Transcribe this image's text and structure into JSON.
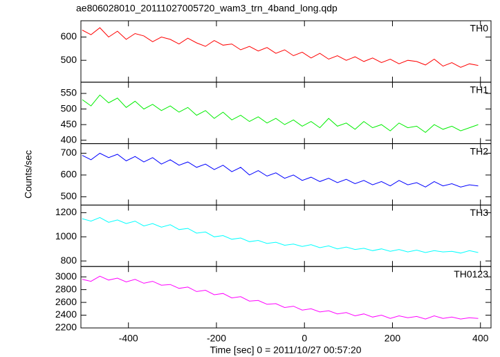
{
  "title": "ae806028010_20111027005720_wam3_trn_4band_long.qdp",
  "xlabel": "Time [sec] 0 = 2011/10/27 00:57:20",
  "ylabel": "Counts/sec",
  "chart_data": [
    {
      "type": "line",
      "x": [
        -505,
        -485,
        -465,
        -445,
        -425,
        -405,
        -385,
        -365,
        -345,
        -325,
        -305,
        -285,
        -265,
        -245,
        -225,
        -205,
        -185,
        -165,
        -145,
        -125,
        -105,
        -85,
        -65,
        -45,
        -25,
        -5,
        15,
        35,
        55,
        75,
        95,
        115,
        135,
        155,
        175,
        195,
        215,
        235,
        255,
        275,
        295,
        315,
        335,
        355,
        375,
        395
      ],
      "xlim": [
        -508,
        424
      ],
      "xticks": [
        -400,
        -200,
        0,
        200,
        400
      ],
      "ylim": [
        406,
        670
      ],
      "yticks": [
        500,
        600
      ],
      "series": [
        {
          "name": "TH0",
          "color": "#ff0000",
          "values": [
            630,
            610,
            640,
            600,
            625,
            590,
            615,
            605,
            580,
            600,
            590,
            570,
            595,
            575,
            560,
            585,
            565,
            570,
            545,
            560,
            540,
            555,
            530,
            545,
            520,
            535,
            510,
            530,
            505,
            520,
            500,
            515,
            495,
            510,
            490,
            505,
            485,
            500,
            495,
            480,
            505,
            475,
            490,
            470,
            485,
            478
          ]
        }
      ]
    },
    {
      "type": "line",
      "x": [
        -505,
        -485,
        -465,
        -445,
        -425,
        -405,
        -385,
        -365,
        -345,
        -325,
        -305,
        -285,
        -265,
        -245,
        -225,
        -205,
        -185,
        -165,
        -145,
        -125,
        -105,
        -85,
        -65,
        -45,
        -25,
        -5,
        15,
        35,
        55,
        75,
        95,
        115,
        135,
        155,
        175,
        195,
        215,
        235,
        255,
        275,
        295,
        315,
        335,
        355,
        375,
        395
      ],
      "xlim": [
        -508,
        424
      ],
      "xticks": [
        -400,
        -200,
        0,
        200,
        400
      ],
      "ylim": [
        389,
        586
      ],
      "yticks": [
        400,
        450,
        500,
        550
      ],
      "series": [
        {
          "name": "TH1",
          "color": "#00ee00",
          "values": [
            530,
            510,
            545,
            520,
            535,
            505,
            525,
            500,
            515,
            495,
            510,
            490,
            505,
            480,
            495,
            470,
            490,
            465,
            480,
            460,
            475,
            455,
            470,
            450,
            465,
            445,
            460,
            440,
            470,
            445,
            455,
            435,
            460,
            440,
            450,
            430,
            455,
            440,
            445,
            425,
            450,
            435,
            445,
            430,
            440,
            450
          ]
        }
      ]
    },
    {
      "type": "line",
      "x": [
        -505,
        -485,
        -465,
        -445,
        -425,
        -405,
        -385,
        -365,
        -345,
        -325,
        -305,
        -285,
        -265,
        -245,
        -225,
        -205,
        -185,
        -165,
        -145,
        -125,
        -105,
        -85,
        -65,
        -45,
        -25,
        -5,
        15,
        35,
        55,
        75,
        95,
        115,
        135,
        155,
        175,
        195,
        215,
        235,
        255,
        275,
        295,
        315,
        335,
        355,
        375,
        395
      ],
      "xlim": [
        -508,
        424
      ],
      "xticks": [
        -400,
        -200,
        0,
        200,
        400
      ],
      "ylim": [
        462,
        744
      ],
      "yticks": [
        500,
        600,
        700
      ],
      "series": [
        {
          "name": "TH2",
          "color": "#0000ff",
          "values": [
            690,
            670,
            700,
            680,
            695,
            665,
            685,
            660,
            680,
            650,
            670,
            645,
            660,
            635,
            650,
            625,
            645,
            615,
            635,
            600,
            620,
            595,
            610,
            585,
            600,
            575,
            590,
            570,
            585,
            565,
            580,
            560,
            575,
            555,
            570,
            550,
            575,
            555,
            565,
            545,
            570,
            550,
            560,
            545,
            555,
            550
          ]
        }
      ]
    },
    {
      "type": "line",
      "x": [
        -505,
        -485,
        -465,
        -445,
        -425,
        -405,
        -385,
        -365,
        -345,
        -325,
        -305,
        -285,
        -265,
        -245,
        -225,
        -205,
        -185,
        -165,
        -145,
        -125,
        -105,
        -85,
        -65,
        -45,
        -25,
        -5,
        15,
        35,
        55,
        75,
        95,
        115,
        135,
        155,
        175,
        195,
        215,
        235,
        255,
        275,
        295,
        315,
        335,
        355,
        375,
        395
      ],
      "xlim": [
        -508,
        424
      ],
      "xticks": [
        -400,
        -200,
        0,
        200,
        400
      ],
      "ylim": [
        754,
        1263
      ],
      "yticks": [
        800,
        1000,
        1200
      ],
      "series": [
        {
          "name": "TH3",
          "color": "#00ffff",
          "values": [
            1150,
            1130,
            1160,
            1120,
            1140,
            1110,
            1130,
            1090,
            1110,
            1080,
            1100,
            1060,
            1070,
            1030,
            1040,
            1000,
            1010,
            980,
            990,
            960,
            970,
            945,
            955,
            930,
            940,
            920,
            935,
            910,
            925,
            900,
            915,
            895,
            905,
            885,
            900,
            880,
            895,
            875,
            890,
            870,
            885,
            875,
            880,
            865,
            885,
            870
          ]
        }
      ]
    },
    {
      "type": "line",
      "x": [
        -505,
        -485,
        -465,
        -445,
        -425,
        -405,
        -385,
        -365,
        -345,
        -325,
        -305,
        -285,
        -265,
        -245,
        -225,
        -205,
        -185,
        -165,
        -145,
        -125,
        -105,
        -85,
        -65,
        -45,
        -25,
        -5,
        15,
        35,
        55,
        75,
        95,
        115,
        135,
        155,
        175,
        195,
        215,
        235,
        255,
        275,
        295,
        315,
        335,
        355,
        375,
        395
      ],
      "xlim": [
        -508,
        424
      ],
      "xticks": [
        -400,
        -200,
        0,
        200,
        400
      ],
      "ylim": [
        2200,
        3162
      ],
      "yticks": [
        2200,
        2400,
        2600,
        2800,
        3000
      ],
      "series": [
        {
          "name": "TH0123",
          "color": "#ff00ff",
          "values": [
            2960,
            2930,
            3010,
            2950,
            2980,
            2920,
            2960,
            2900,
            2930,
            2870,
            2880,
            2820,
            2840,
            2770,
            2790,
            2720,
            2740,
            2670,
            2690,
            2620,
            2630,
            2570,
            2580,
            2520,
            2540,
            2480,
            2500,
            2450,
            2470,
            2420,
            2440,
            2390,
            2420,
            2370,
            2400,
            2350,
            2390,
            2360,
            2380,
            2340,
            2390,
            2350,
            2370,
            2340,
            2360,
            2350
          ]
        }
      ]
    }
  ]
}
